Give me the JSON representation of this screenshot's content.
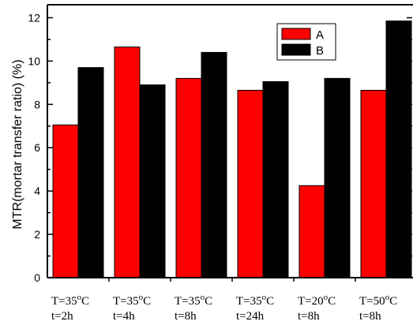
{
  "chart_data": {
    "type": "bar",
    "categories": [
      {
        "line1": "T=35",
        "sup": "o",
        "unit": "C",
        "line2": "t=2h"
      },
      {
        "line1": "T=35",
        "sup": "o",
        "unit": "C",
        "line2": "t=4h"
      },
      {
        "line1": "T=35",
        "sup": "o",
        "unit": "C",
        "line2": "t=8h"
      },
      {
        "line1": "T=35",
        "sup": "o",
        "unit": "C",
        "line2": "t=24h"
      },
      {
        "line1": "T=20",
        "sup": "o",
        "unit": "C",
        "line2": "t=8h"
      },
      {
        "line1": "T=50",
        "sup": "o",
        "unit": "C",
        "line2": "t=8h"
      }
    ],
    "series": [
      {
        "name": "A",
        "color": "#ff0000",
        "values": [
          7.05,
          10.65,
          9.2,
          8.65,
          4.25,
          8.65
        ]
      },
      {
        "name": "B",
        "color": "#000000",
        "values": [
          9.7,
          8.9,
          10.4,
          9.05,
          9.2,
          11.85
        ]
      }
    ],
    "title": "",
    "xlabel": "",
    "ylabel": "MTR(mortar transfer ratio) (%)",
    "ylim": [
      0,
      12.6
    ],
    "yticks": [
      "0",
      "2",
      "4",
      "6",
      "8",
      "10",
      "12"
    ],
    "legend_position": "top-right",
    "grid": false
  }
}
